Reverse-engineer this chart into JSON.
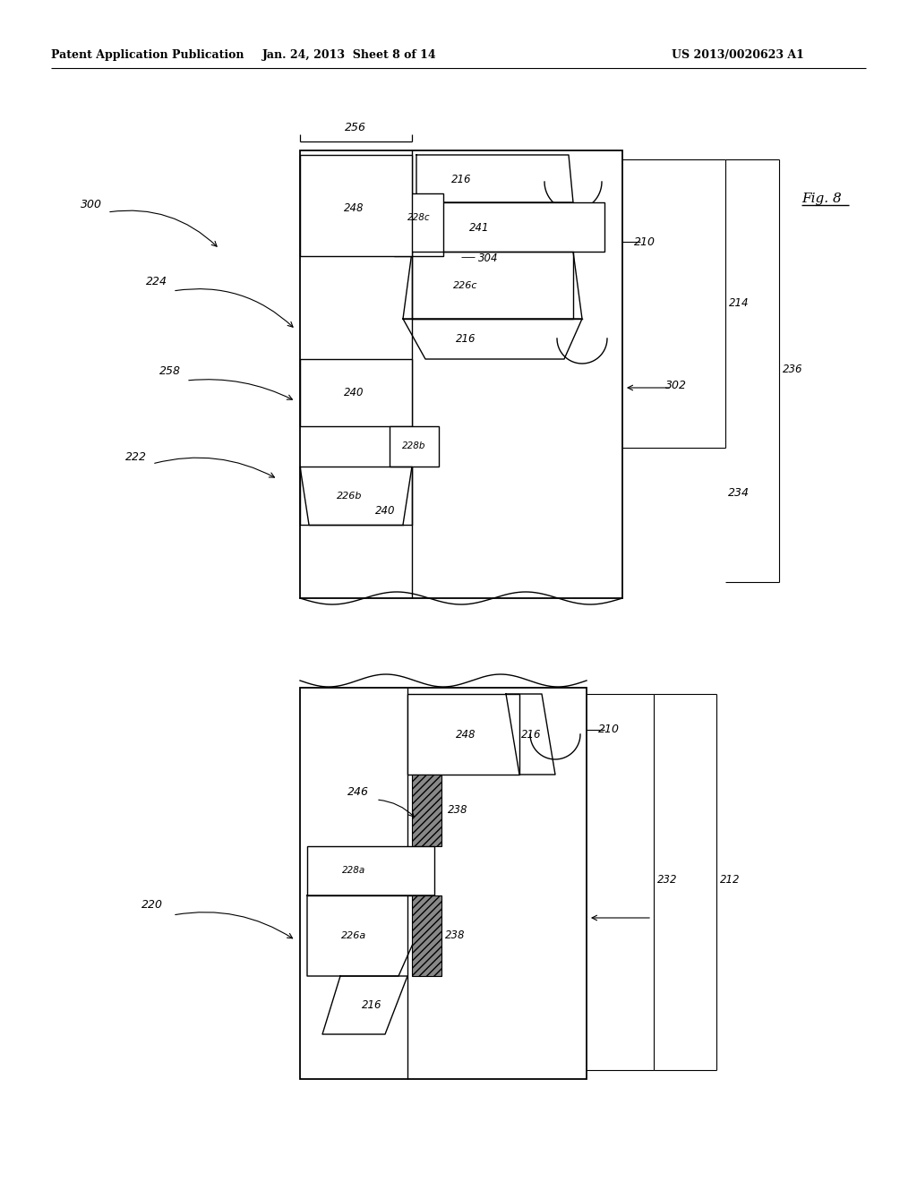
{
  "title_left": "Patent Application Publication",
  "title_center": "Jan. 24, 2013  Sheet 8 of 14",
  "title_right": "US 2013/0020623 A1",
  "fig_label": "Fig. 8",
  "bg_color": "#ffffff",
  "line_color": "#000000",
  "header_fontsize": 9,
  "label_fontsize": 8.5
}
